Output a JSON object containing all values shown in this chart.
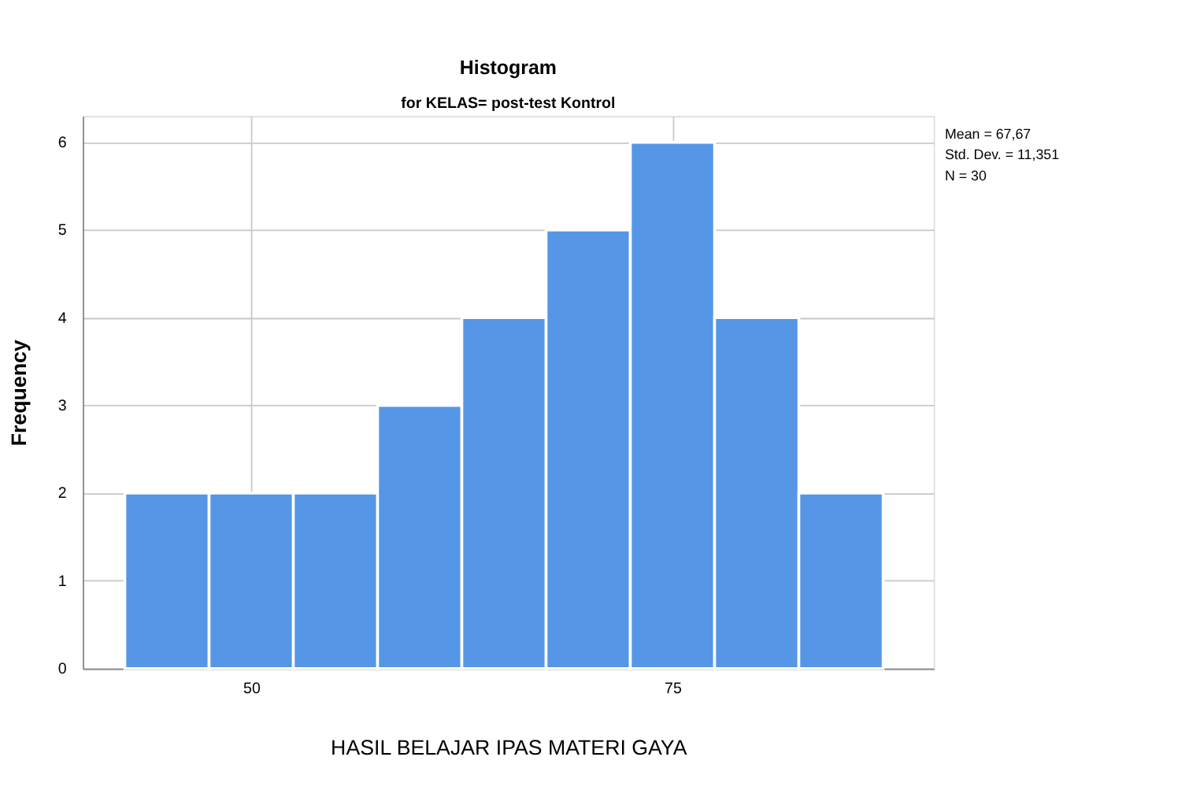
{
  "chart_data": {
    "type": "histogram",
    "title": "Histogram",
    "subtitle": "for KELAS= post-test Kontrol",
    "xlabel": "HASIL BELAJAR IPAS MATERI GAYA",
    "ylabel": "Frequency",
    "bins": [
      42.5,
      47.5,
      52.5,
      57.5,
      62.5,
      67.5,
      72.5,
      77.5,
      82.5,
      87.5
    ],
    "values": [
      2,
      2,
      2,
      3,
      4,
      5,
      6,
      4,
      2
    ],
    "color": "#5596e6",
    "xlim": [
      40,
      90.5
    ],
    "xticks": [
      50,
      75
    ],
    "ylim": [
      0,
      6.3
    ],
    "yticks": [
      0,
      1,
      2,
      3,
      4,
      5,
      6
    ],
    "grid": true,
    "annotations": [
      "Mean = 67,67",
      "Std. Dev. = 11,351",
      "N = 30"
    ]
  }
}
